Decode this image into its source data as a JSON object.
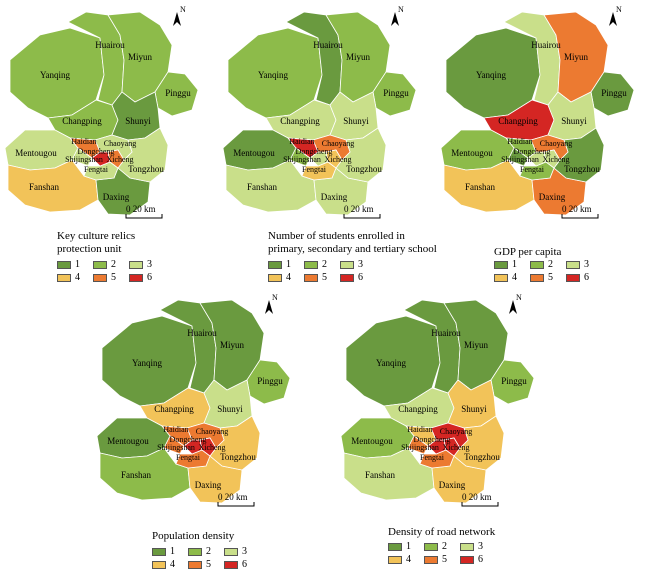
{
  "legend_labels": [
    "1",
    "2",
    "3",
    "4",
    "5",
    "6"
  ],
  "colors": {
    "c1": "#6a9a3f",
    "c2": "#8dbb4a",
    "c3": "#c9df8a",
    "c4": "#f2c359",
    "c5": "#ec7a31",
    "c6": "#d42623"
  },
  "district_names": {
    "huairou": "Huairou",
    "miyun": "Miyun",
    "yanqing": "Yanqing",
    "pinggu": "Pinggu",
    "changping": "Changping",
    "shunyi": "Shunyi",
    "mentougou": "Mentougou",
    "haidian": "Haidian",
    "chaoyang": "Chaoyang",
    "dongcheng": "Dongcheng",
    "shijingshan": "Shijingshan",
    "xicheng": "Xicheng",
    "fengtai": "Fengtai",
    "tongzhou": "Tongzhou",
    "fanshan": "Fanshan",
    "daxing": "Daxing"
  },
  "north_label": "N",
  "scale_label": "0      20 km",
  "maps": [
    {
      "id": "culture",
      "title_lines": [
        "Key culture relics",
        "protection unit"
      ],
      "classes": {
        "huairou": 2,
        "miyun": 2,
        "yanqing": 2,
        "pinggu": 2,
        "changping": 2,
        "shunyi": 1,
        "mentougou": 3,
        "haidian": 5,
        "chaoyang": 3,
        "dongcheng": 6,
        "shijingshan": 3,
        "xicheng": 5,
        "fengtai": 3,
        "tongzhou": 3,
        "fanshan": 4,
        "daxing": 1
      }
    },
    {
      "id": "students",
      "title_lines": [
        "Number of students enrolled in",
        "primary, secondary and tertiary school"
      ],
      "classes": {
        "huairou": 1,
        "miyun": 2,
        "yanqing": 2,
        "pinggu": 2,
        "changping": 3,
        "shunyi": 3,
        "mentougou": 1,
        "haidian": 6,
        "chaoyang": 5,
        "dongcheng": 3,
        "shijingshan": 2,
        "xicheng": 4,
        "fengtai": 4,
        "tongzhou": 3,
        "fanshan": 3,
        "daxing": 3
      }
    },
    {
      "id": "gdp",
      "title_lines": [
        "GDP per capita"
      ],
      "classes": {
        "huairou": 3,
        "miyun": 5,
        "yanqing": 1,
        "pinggu": 1,
        "changping": 6,
        "shunyi": 3,
        "mentougou": 2,
        "haidian": 2,
        "chaoyang": 5,
        "dongcheng": 3,
        "shijingshan": 1,
        "xicheng": 3,
        "fengtai": 2,
        "tongzhou": 1,
        "fanshan": 4,
        "daxing": 5
      }
    },
    {
      "id": "population",
      "title_lines": [
        "Population density"
      ],
      "classes": {
        "huairou": 1,
        "miyun": 1,
        "yanqing": 1,
        "pinggu": 2,
        "changping": 4,
        "shunyi": 3,
        "mentougou": 1,
        "haidian": 5,
        "chaoyang": 5,
        "dongcheng": 6,
        "shijingshan": 5,
        "xicheng": 6,
        "fengtai": 5,
        "tongzhou": 4,
        "fanshan": 2,
        "daxing": 4
      }
    },
    {
      "id": "road",
      "title_lines": [
        "Density of road network"
      ],
      "classes": {
        "huairou": 1,
        "miyun": 1,
        "yanqing": 1,
        "pinggu": 2,
        "changping": 3,
        "shunyi": 4,
        "mentougou": 2,
        "haidian": 4,
        "chaoyang": 6,
        "dongcheng": 6,
        "shijingshan": 5,
        "xicheng": 6,
        "fengtai": 5,
        "tongzhou": 4,
        "fanshan": 3,
        "daxing": 4
      }
    }
  ]
}
